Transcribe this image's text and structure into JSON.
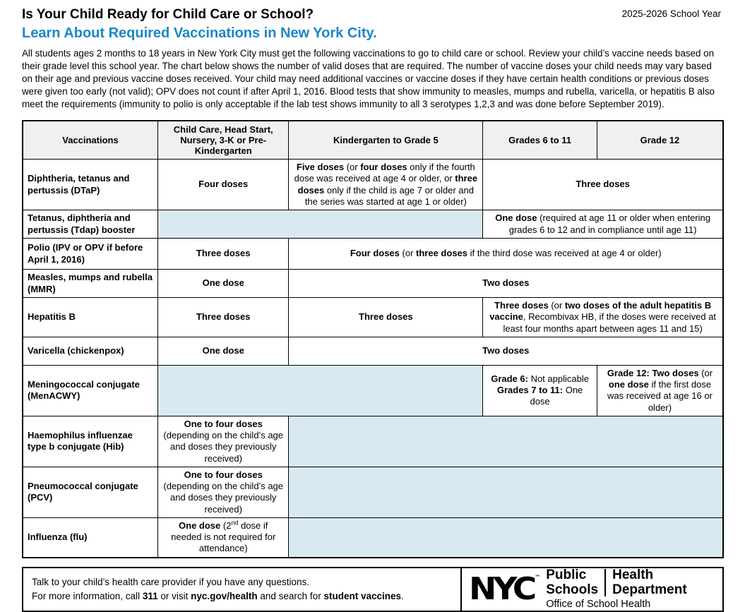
{
  "colors": {
    "accent_blue": "#1B86C8",
    "cell_blue": "#D9E9F2",
    "header_gray": "#F0F0F0"
  },
  "header": {
    "title": "Is Your Child Ready for Child Care or School?",
    "subtitle": "Learn About Required Vaccinations in New York City.",
    "school_year": "2025-2026 School Year"
  },
  "intro": "All students ages 2 months to 18 years in New York City must get the following vaccinations to go to child care or school. Review your child’s vaccine needs based on their grade level this school year. The chart below shows the number of valid doses that are required. The number of vaccine doses your child needs may vary based on their age and previous vaccine doses received. Your child may need additional vaccines or vaccine doses if they have certain health conditions or previous doses were given too early (not valid); OPV does not count if after April 1, 2016. Blood tests that show immunity to measles, mumps and rubella, varicella, or hepatitis B also meet the requirements (immunity to polio is only acceptable if the lab test shows immunity to all 3 serotypes 1,2,3 and was done before September 2019).",
  "table": {
    "col_widths": [
      19.3,
      18.7,
      27.7,
      16.3,
      18.0
    ],
    "header": [
      "Vaccinations",
      "Child Care, Head Start, Nursery, 3-K or Pre-Kindergarten",
      "Kindergarten to Grade 5",
      "Grades 6 to 11",
      "Grade 12"
    ],
    "rows": [
      {
        "name": "dtap",
        "h": 64,
        "label": "Diphtheria, tetanus and pertussis (DTaP)",
        "cells": [
          {
            "span": 1,
            "segments": [
              {
                "t": "Four doses",
                "b": true
              }
            ]
          },
          {
            "span": 1,
            "segments": [
              {
                "t": "Five doses",
                "b": true
              },
              {
                "t": " (or "
              },
              {
                "t": "four doses",
                "b": true
              },
              {
                "t": " only if the fourth dose was received at age 4 or older, or "
              },
              {
                "t": "three doses",
                "b": true
              },
              {
                "t": " only if the child is age 7 or older and the series was started at age 1 or older)"
              }
            ]
          },
          {
            "span": 2,
            "segments": [
              {
                "t": "Three doses",
                "b": true
              }
            ]
          }
        ]
      },
      {
        "name": "tdap",
        "h": 40,
        "label": "Tetanus, diphtheria and pertussis (Tdap) booster",
        "cells": [
          {
            "span": 2,
            "bg": "blue"
          },
          {
            "span": 2,
            "segments": [
              {
                "t": "One dose",
                "b": true
              },
              {
                "t": " (required at age 11 or older when entering grades 6 to 12 and in compliance until age 11)"
              }
            ]
          }
        ]
      },
      {
        "name": "polio",
        "h": 44,
        "label": "Polio (IPV or OPV if before April 1, 2016)",
        "cells": [
          {
            "span": 1,
            "segments": [
              {
                "t": "Three doses",
                "b": true
              }
            ]
          },
          {
            "span": 3,
            "segments": [
              {
                "t": "Four doses",
                "b": true
              },
              {
                "t": " (or "
              },
              {
                "t": "three doses",
                "b": true
              },
              {
                "t": " if the third dose was received at age 4 or older)"
              }
            ]
          }
        ]
      },
      {
        "name": "mmr",
        "h": 40,
        "label": "Measles, mumps and rubella (MMR)",
        "cells": [
          {
            "span": 1,
            "segments": [
              {
                "t": "One dose",
                "b": true
              }
            ]
          },
          {
            "span": 3,
            "segments": [
              {
                "t": "Two doses",
                "b": true
              }
            ]
          }
        ]
      },
      {
        "name": "hepatitis-b",
        "h": 51,
        "label": "Hepatitis B",
        "cells": [
          {
            "span": 1,
            "segments": [
              {
                "t": "Three doses",
                "b": true
              }
            ]
          },
          {
            "span": 1,
            "segments": [
              {
                "t": "Three doses",
                "b": true
              }
            ]
          },
          {
            "span": 2,
            "segments": [
              {
                "t": "Three doses",
                "b": true
              },
              {
                "t": " (or "
              },
              {
                "t": "two doses of the adult hepatitis B vaccine",
                "b": true
              },
              {
                "t": ", Recombivax HB, if the doses were received at least four months apart between ages 11 and 15)"
              }
            ]
          }
        ]
      },
      {
        "name": "varicella",
        "h": 40,
        "label": "Varicella (chickenpox)",
        "cells": [
          {
            "span": 1,
            "segments": [
              {
                "t": "One dose",
                "b": true
              }
            ]
          },
          {
            "span": 3,
            "segments": [
              {
                "t": "Two doses",
                "b": true
              }
            ]
          }
        ]
      },
      {
        "name": "menacwy",
        "h": 64,
        "label": "Meningococcal conjugate (MenACWY)",
        "cells": [
          {
            "span": 2,
            "bg": "blue"
          },
          {
            "span": 1,
            "segments": [
              {
                "t": "Grade 6:",
                "b": true
              },
              {
                "t": " Not applicable"
              },
              {
                "br": true
              },
              {
                "t": "Grades 7 to 11:",
                "b": true
              },
              {
                "t": " One dose"
              }
            ]
          },
          {
            "span": 1,
            "segments": [
              {
                "t": "Grade 12: Two doses",
                "b": true
              },
              {
                "t": " (or "
              },
              {
                "t": "one dose",
                "b": true
              },
              {
                "t": " if the first dose was received at age 16 or older)"
              }
            ]
          }
        ]
      },
      {
        "name": "hib",
        "h": 62,
        "label": "Haemophilus influenzae type b conjugate (Hib)",
        "cells": [
          {
            "span": 1,
            "segments": [
              {
                "t": "One to four doses",
                "b": true
              },
              {
                "br": true
              },
              {
                "t": "(depending on the child’s age and doses they previously received)"
              }
            ]
          },
          {
            "span": 3,
            "bg": "blue"
          }
        ]
      },
      {
        "name": "pcv",
        "h": 66,
        "label": "Pneumococcal conjugate (PCV)",
        "cells": [
          {
            "span": 1,
            "segments": [
              {
                "t": "One to four doses",
                "b": true
              },
              {
                "br": true
              },
              {
                "t": "(depending on the child’s age and doses they previously received)"
              }
            ]
          },
          {
            "span": 3,
            "bg": "blue"
          }
        ]
      },
      {
        "name": "influenza",
        "h": 46,
        "label": "Influenza (flu)",
        "cells": [
          {
            "span": 1,
            "segments": [
              {
                "t": "One dose",
                "b": true
              },
              {
                "t": " (2"
              },
              {
                "t": "nd",
                "sup": true
              },
              {
                "t": " dose if needed is not required for attendance)"
              }
            ]
          },
          {
            "span": 3,
            "bg": "blue"
          }
        ]
      }
    ]
  },
  "footer": {
    "line1": "Talk to your child’s health care provider if you have any questions.",
    "line2": [
      {
        "t": "For more information, call "
      },
      {
        "t": "311",
        "b": true
      },
      {
        "t": " or visit "
      },
      {
        "t": "nyc.gov/health",
        "b": true
      },
      {
        "t": " and search for "
      },
      {
        "t": "student vaccines",
        "b": true
      },
      {
        "t": "."
      }
    ],
    "logo": {
      "nyc": "NYC",
      "tm": "™",
      "public": "Public",
      "schools": "Schools",
      "health": "Health",
      "department": "Department",
      "office": "Office of School Health"
    }
  }
}
